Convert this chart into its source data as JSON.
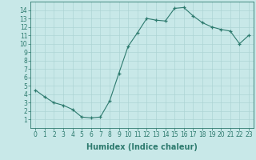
{
  "x": [
    0,
    1,
    2,
    3,
    4,
    5,
    6,
    7,
    8,
    9,
    10,
    11,
    12,
    13,
    14,
    15,
    16,
    17,
    18,
    19,
    20,
    21,
    22,
    23
  ],
  "y": [
    4.5,
    3.7,
    3.0,
    2.7,
    2.2,
    1.3,
    1.2,
    1.3,
    3.2,
    6.5,
    9.7,
    11.3,
    13.0,
    12.8,
    12.7,
    14.2,
    14.3,
    13.3,
    12.5,
    12.0,
    11.7,
    11.5,
    10.0,
    11.0
  ],
  "xlabel": "Humidex (Indice chaleur)",
  "xlim": [
    -0.5,
    23.5
  ],
  "ylim": [
    0,
    15
  ],
  "yticks": [
    1,
    2,
    3,
    4,
    5,
    6,
    7,
    8,
    9,
    10,
    11,
    12,
    13,
    14
  ],
  "xticks": [
    0,
    1,
    2,
    3,
    4,
    5,
    6,
    7,
    8,
    9,
    10,
    11,
    12,
    13,
    14,
    15,
    16,
    17,
    18,
    19,
    20,
    21,
    22,
    23
  ],
  "line_color": "#2d7a6e",
  "marker": "+",
  "bg_color": "#c8e8e8",
  "grid_color": "#aed4d4",
  "tick_fontsize": 5.5,
  "xlabel_fontsize": 7,
  "xlabel_fontweight": "bold"
}
